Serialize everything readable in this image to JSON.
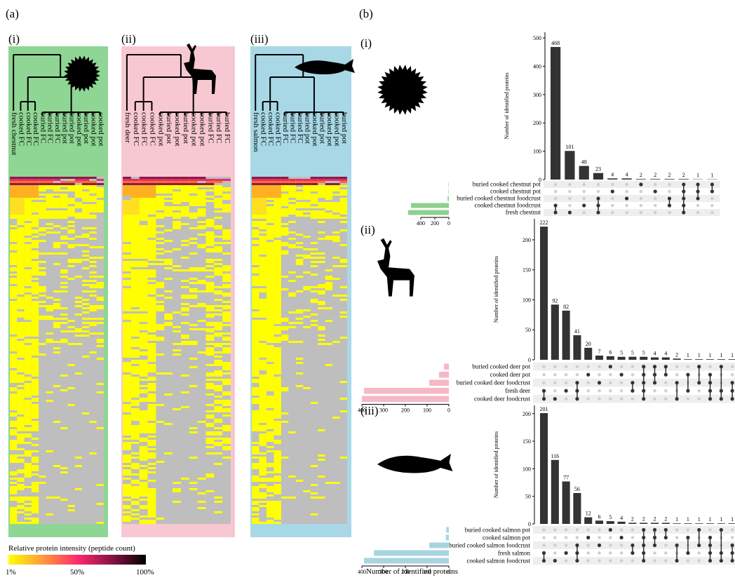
{
  "panel_a": {
    "letter": "(a)",
    "subpanels": [
      {
        "id": "i",
        "label": "(i)",
        "bg": "#8fd694",
        "columns": [
          "fresh chestnut",
          "cooked FC",
          "cooked FC",
          "cooked FC",
          "buried FC",
          "buried FC",
          "buried FC",
          "buried pot",
          "buried pot",
          "cooked pot",
          "buried pot",
          "cooked pot",
          "cooked pot"
        ]
      },
      {
        "id": "ii",
        "label": "(ii)",
        "bg": "#f7c8d2",
        "columns": [
          "fresh deer",
          "cooked FC",
          "cooked FC",
          "cooked FC",
          "cooked pot",
          "buried pot",
          "cooked pot",
          "buried pot",
          "cooked pot",
          "cooked pot",
          "buried FC",
          "buried FC",
          "buried FC"
        ]
      },
      {
        "id": "iii",
        "label": "(iii)",
        "bg": "#a8d8e6",
        "columns": [
          "fresh salmon",
          "cooked FC",
          "cooked FC",
          "cooked FC",
          "buried FC",
          "buried FC",
          "buried FC",
          "buried pot",
          "cooked pot",
          "buried pot",
          "cooked pot",
          "cooked pot",
          "buried pot"
        ]
      }
    ],
    "legend": {
      "title": "Relative protein intensity (peptide count)",
      "ticks": [
        "1%",
        "50%",
        "100%"
      ],
      "colors": [
        "#ffff00",
        "#ff2a6d",
        "#000000"
      ]
    }
  },
  "panel_b": {
    "letter": "(b)",
    "ylabel": "Number of identified proteins",
    "xlabel_sets": "Number of identified proteins"
  },
  "chart_data": [
    {
      "type": "bar",
      "panel": "b(i)",
      "label": "(i)",
      "color": "#8fcf8f",
      "intersection_counts": [
        468,
        101,
        48,
        23,
        4,
        4,
        2,
        2,
        2,
        2,
        1,
        1
      ],
      "yticks": [
        0,
        100,
        200,
        300,
        400,
        500
      ],
      "ylim": [
        0,
        520
      ],
      "sets": [
        "buried cooked chestnut pot",
        "cooked chestnut pot",
        "buried cooked chestnut foodcrust",
        "cooked chestnut foodcrust",
        "fresh chestnut"
      ],
      "set_sizes": [
        5,
        6,
        18,
        540,
        580
      ],
      "set_ticks": [
        400,
        200,
        0
      ],
      "matrix": [
        [
          4
        ],
        [
          3
        ],
        [
          3
        ],
        [
          0,
          1
        ],
        [
          0,
          1
        ]
      ]
    },
    {
      "type": "bar",
      "panel": "b(ii)",
      "label": "(ii)",
      "color": "#f5b8c5",
      "intersection_counts": [
        222,
        92,
        82,
        41,
        20,
        7,
        6,
        5,
        5,
        5,
        4,
        4,
        2,
        1,
        1,
        1,
        1,
        1
      ],
      "yticks": [
        0,
        50,
        100,
        150,
        200
      ],
      "ylim": [
        0,
        235
      ],
      "sets": [
        "buried cooked deer pot",
        "cooked deer pot",
        "buried cooked deer foodcrust",
        "fresh deer",
        "cooked deer foodcrust"
      ],
      "set_sizes": [
        22,
        45,
        90,
        390,
        400
      ],
      "set_ticks": [
        400,
        300,
        200,
        100,
        0
      ]
    },
    {
      "type": "bar",
      "panel": "b(iii)",
      "label": "(iii)",
      "color": "#a8d4e2",
      "intersection_counts": [
        201,
        116,
        77,
        56,
        12,
        6,
        5,
        4,
        2,
        2,
        2,
        2,
        1,
        1,
        1,
        1,
        1,
        1
      ],
      "yticks": [
        0,
        50,
        100,
        150,
        200
      ],
      "ylim": [
        0,
        215
      ],
      "sets": [
        "buried cooked salmon pot",
        "cooked salmon pot",
        "buried cooked salmon foodcrust",
        "fresh salmon",
        "cooked salmon foodcrust"
      ],
      "set_sizes": [
        12,
        14,
        90,
        345,
        390
      ],
      "set_ticks": [
        400,
        300,
        200,
        100,
        0
      ]
    }
  ]
}
